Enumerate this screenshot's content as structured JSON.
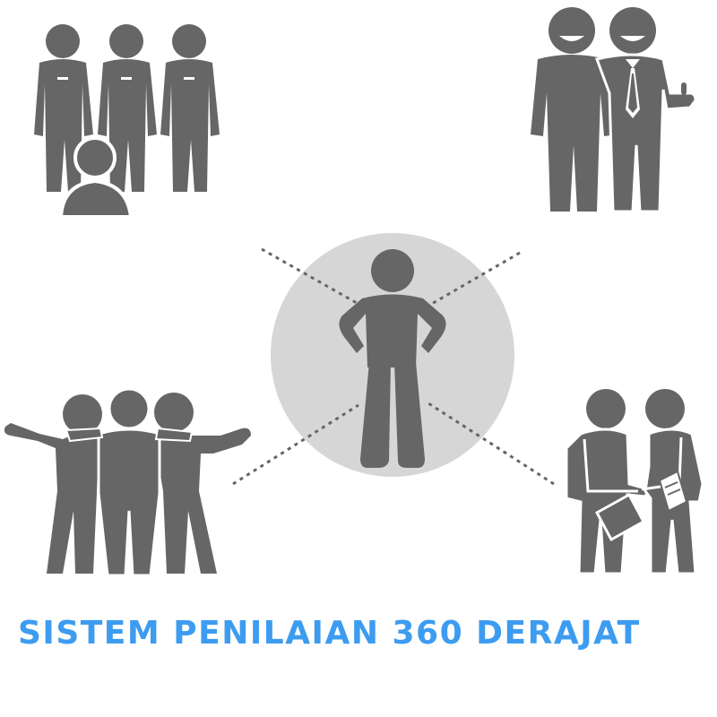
{
  "title": "SISTEM PENILAIAN 360 DERAJAT",
  "colors": {
    "figure": "#666666",
    "center_circle": "#d6d6d6",
    "connector": "#666666",
    "title": "#3d9cf0",
    "background": "#ffffff"
  },
  "icons": {
    "center": "person-hands-on-hips-icon",
    "top_left": "team-group-icon",
    "top_right": "two-managers-icon",
    "bottom_left": "peers-embracing-icon",
    "bottom_right": "handshake-icon"
  }
}
